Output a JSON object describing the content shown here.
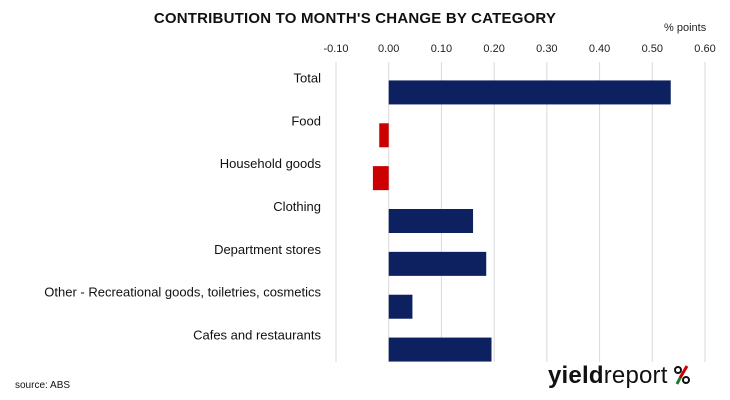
{
  "chart_data": {
    "type": "bar",
    "orientation": "horizontal",
    "title": "CONTRIBUTION TO MONTH'S CHANGE BY CATEGORY",
    "unit_label": "% points",
    "xlim": [
      -0.1,
      0.6
    ],
    "ticks": [
      -0.1,
      0.0,
      0.1,
      0.2,
      0.3,
      0.4,
      0.5,
      0.6
    ],
    "tick_labels": [
      "-0.10",
      "0.00",
      "0.10",
      "0.20",
      "0.30",
      "0.40",
      "0.50",
      "0.60"
    ],
    "categories": [
      "Total",
      "Food",
      "Household goods",
      "Clothing",
      "Department stores",
      "Other - Recreational goods, toiletries, cosmetics",
      "Cafes and restaurants"
    ],
    "values": [
      0.535,
      -0.018,
      -0.03,
      0.16,
      0.185,
      0.045,
      0.195
    ],
    "grid": true,
    "colors": {
      "positive": "#0d2060",
      "negative": "#cc0000",
      "grid": "#d9d9d9"
    }
  },
  "source": "source: ABS",
  "logo": {
    "part1": "yield",
    "part2": "report",
    "symbol": "%"
  }
}
